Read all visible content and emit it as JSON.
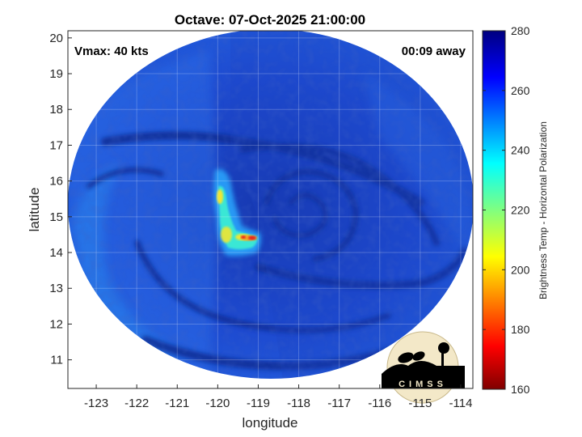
{
  "title": "Octave: 07-Oct-2025 21:00:00",
  "vmax_text": "Vmax: 40 kts",
  "away_text": "00:09 away",
  "xlabel": "longitude",
  "ylabel": "latitude",
  "colorbar": {
    "label": "Brightness Temp - Horizontal Polarization",
    "min": 160,
    "max": 280,
    "ticks": [
      "280",
      "260",
      "240",
      "220",
      "200",
      "180",
      "160"
    ]
  },
  "map": {
    "lon_range": [
      -123.7,
      -113.7
    ],
    "lat_range": [
      10.2,
      20.2
    ],
    "lon_ticks": [
      "-123",
      "-122",
      "-121",
      "-120",
      "-119",
      "-118",
      "-117",
      "-116",
      "-115",
      "-114"
    ],
    "lat_ticks": [
      "20",
      "19",
      "18",
      "17",
      "16",
      "15",
      "14",
      "13",
      "12",
      "11"
    ],
    "storm_center": {
      "lon": -118.3,
      "lat": 15.2
    },
    "swath_radius_deg": 5.7,
    "grid": true
  },
  "logo_text": "CIMSS",
  "colors": {
    "background_ocean": "#1e46c8",
    "band_dark": "#0f2d9a",
    "warm_region": "#28b4ff",
    "convection_cyan": "#3cf0d2",
    "convection_yellow": "#f0e632",
    "convection_red": "#e61e1e"
  }
}
